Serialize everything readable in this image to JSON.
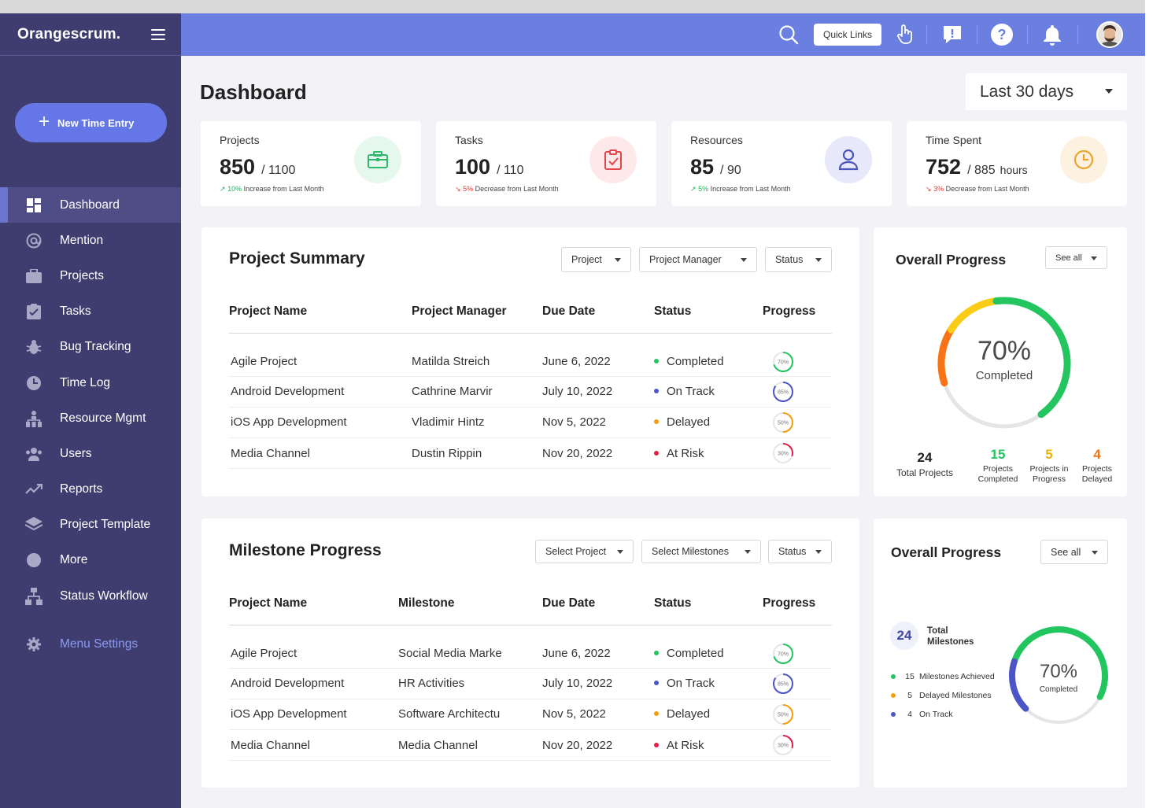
{
  "sidebar": {
    "logo": "Orangescrum.",
    "new_entry": "New Time Entry",
    "items": [
      {
        "label": "Dashboard",
        "icon": "dashboard-icon",
        "active": true
      },
      {
        "label": "Mention",
        "icon": "at-icon"
      },
      {
        "label": "Projects",
        "icon": "briefcase-icon"
      },
      {
        "label": "Tasks",
        "icon": "clipboard-icon"
      },
      {
        "label": "Bug Tracking",
        "icon": "bug-icon"
      },
      {
        "label": "Time Log",
        "icon": "clock-icon"
      },
      {
        "label": "Resource Mgmt",
        "icon": "hierarchy-icon"
      },
      {
        "label": "Users",
        "icon": "users-icon"
      },
      {
        "label": "Reports",
        "icon": "trend-icon"
      },
      {
        "label": "Project Template",
        "icon": "layers-icon"
      },
      {
        "label": "More",
        "icon": "circle-icon"
      },
      {
        "label": "Status Workflow",
        "icon": "workflow-icon"
      }
    ],
    "menu_settings": "Menu Settings"
  },
  "header": {
    "quick_links": "Quick Links",
    "icons": [
      "search-icon",
      "hand-pointer-icon",
      "feedback-icon",
      "help-icon",
      "bell-icon"
    ]
  },
  "page": {
    "title": "Dashboard",
    "range": "Last 30 days"
  },
  "stats": [
    {
      "label": "Projects",
      "value": "850",
      "total": "/ 1100",
      "unit": "",
      "change": "10%",
      "change_text": "Increase from Last Month",
      "direction": "up",
      "icon": "briefcase-icon",
      "color": "#2eb86b",
      "bg": "#e6f7ee"
    },
    {
      "label": "Tasks",
      "value": "100",
      "total": "/ 110",
      "unit": "",
      "change": "5%",
      "change_text": "Decrease from Last Month",
      "direction": "down",
      "icon": "clipboard-check-icon",
      "color": "#e0474c",
      "bg": "#fde9ea"
    },
    {
      "label": "Resources",
      "value": "85",
      "total": "/ 90",
      "unit": "",
      "change": "5%",
      "change_text": "Increase from Last Month",
      "direction": "up",
      "icon": "user-icon",
      "color": "#4b55b8",
      "bg": "#e7e9fb"
    },
    {
      "label": "Time Spent",
      "value": "752",
      "total": "/ 885",
      "unit": "hours",
      "change": "3%",
      "change_text": "Decrease from Last Month",
      "direction": "down",
      "icon": "clock-icon",
      "color": "#e8a530",
      "bg": "#fdf1df"
    }
  ],
  "project_summary": {
    "title": "Project Summary",
    "filters": [
      "Project",
      "Project Manager",
      "Status"
    ],
    "columns": [
      "Project Name",
      "Project Manager",
      "Due Date",
      "Status",
      "Progress"
    ],
    "rows": [
      {
        "name": "Agile Project",
        "manager": "Matilda Streich",
        "due": "June 6, 2022",
        "status": "Completed",
        "status_color": "#22c55e",
        "progress": 70,
        "progress_label": "70%",
        "ring_color": "#22c55e"
      },
      {
        "name": "Android Development",
        "manager": "Cathrine Marvir",
        "due": "July 10, 2022",
        "status": "On Track",
        "status_color": "#4b55c8",
        "progress": 85,
        "progress_label": "85%",
        "ring_color": "#4b55c8"
      },
      {
        "name": "iOS App Development",
        "manager": "Vladimir Hintz",
        "due": "Nov 5, 2022",
        "status": "Delayed",
        "status_color": "#f59e0b",
        "progress": 50,
        "progress_label": "50%",
        "ring_color": "#f59e0b"
      },
      {
        "name": "Media Channel",
        "manager": "Dustin Rippin",
        "due": "Nov 20, 2022",
        "status": "At Risk",
        "status_color": "#e11d48",
        "progress": 30,
        "progress_label": "30%",
        "ring_color": "#e11d48"
      }
    ]
  },
  "overall_projects": {
    "title": "Overall Progress",
    "see_all": "See all",
    "percent": "70%",
    "percent_label": "Completed",
    "progress": 70,
    "totals": [
      {
        "num": "24",
        "label": "Total Projects",
        "color": "#222"
      },
      {
        "num": "15",
        "label": "Projects Completed",
        "color": "#22c55e"
      },
      {
        "num": "5",
        "label": "Projects in Progress",
        "color": "#eab308"
      },
      {
        "num": "4",
        "label": "Projects Delayed",
        "color": "#f97316"
      }
    ]
  },
  "milestone_progress": {
    "title": "Milestone Progress",
    "filters": [
      "Select Project",
      "Select Milestones",
      "Status"
    ],
    "columns": [
      "Project Name",
      "Milestone",
      "Due Date",
      "Status",
      "Progress"
    ],
    "rows": [
      {
        "name": "Agile Project",
        "milestone": "Social Media Marke",
        "due": "June 6, 2022",
        "status": "Completed",
        "status_color": "#22c55e",
        "progress": 70,
        "progress_label": "70%",
        "ring_color": "#22c55e"
      },
      {
        "name": "Android Development",
        "milestone": "HR Activities",
        "due": "July 10, 2022",
        "status": "On Track",
        "status_color": "#4b55c8",
        "progress": 85,
        "progress_label": "85%",
        "ring_color": "#4b55c8"
      },
      {
        "name": "iOS App Development",
        "milestone": "Software Architectu",
        "due": "Nov 5, 2022",
        "status": "Delayed",
        "status_color": "#f59e0b",
        "progress": 50,
        "progress_label": "50%",
        "ring_color": "#f59e0b"
      },
      {
        "name": "Media Channel",
        "milestone": "Media Channel",
        "due": "Nov 20, 2022",
        "status": "At Risk",
        "status_color": "#e11d48",
        "progress": 30,
        "progress_label": "30%",
        "ring_color": "#e11d48"
      }
    ]
  },
  "overall_milestones": {
    "title": "Overall Progress",
    "see_all": "See all",
    "total_num": "24",
    "total_label": "Total Milestones",
    "percent": "70%",
    "percent_label": "Completed",
    "progress": 70,
    "legend": [
      {
        "num": "15",
        "label": "Milestones Achieved",
        "color": "#22c55e"
      },
      {
        "num": "5",
        "label": "Delayed Milestones",
        "color": "#f59e0b"
      },
      {
        "num": "4",
        "label": "On Track",
        "color": "#4b55c8"
      }
    ]
  }
}
